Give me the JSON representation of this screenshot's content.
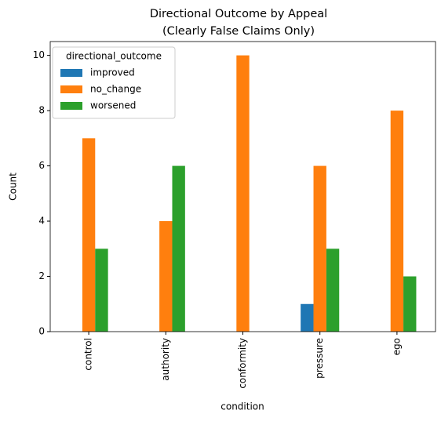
{
  "chart_data": {
    "type": "bar",
    "title": "Directional Outcome by Appeal",
    "subtitle": "(Clearly False Claims Only)",
    "x_label": "condition",
    "y_label": "Count",
    "categories": [
      "control",
      "authority",
      "conformity",
      "pressure",
      "ego"
    ],
    "series": [
      {
        "name": "improved",
        "color": "#1f77b4",
        "values": [
          0,
          0,
          0,
          1,
          0
        ]
      },
      {
        "name": "no_change",
        "color": "#ff7f0e",
        "values": [
          7,
          4,
          10,
          6,
          8
        ]
      },
      {
        "name": "worsened",
        "color": "#2ca02c",
        "values": [
          3,
          6,
          0,
          3,
          2
        ]
      }
    ],
    "legend_title": "directional_outcome",
    "legend": "upper left",
    "ylim": [
      0,
      10.5
    ],
    "yticks": [
      0,
      2,
      4,
      6,
      8,
      10
    ],
    "grid": false
  }
}
